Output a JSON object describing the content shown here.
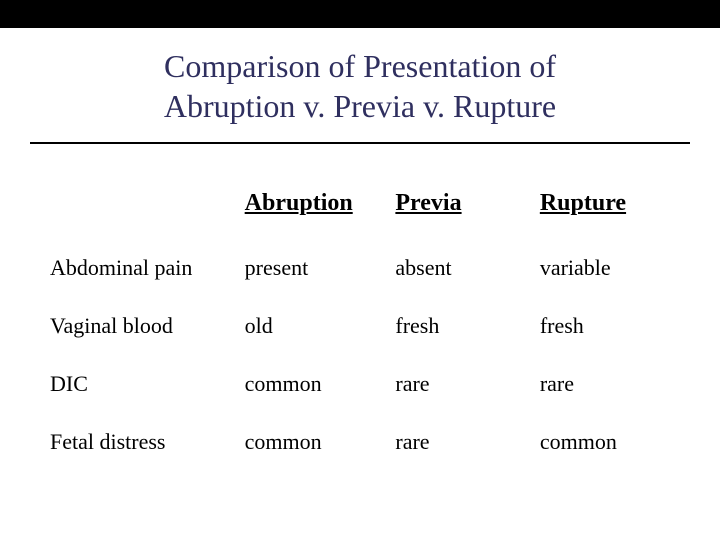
{
  "title": {
    "line1": "Comparison of Presentation of",
    "line2": "Abruption v. Previa v. Rupture"
  },
  "table": {
    "headers": [
      "",
      "Abruption",
      "Previa",
      "Rupture"
    ],
    "rows": [
      {
        "label": "Abdominal pain",
        "cells": [
          "present",
          "absent",
          " variable"
        ]
      },
      {
        "label": "Vaginal blood",
        "cells": [
          "old",
          "fresh",
          "fresh"
        ]
      },
      {
        "label": "DIC",
        "cells": [
          "common",
          "rare",
          "rare"
        ]
      },
      {
        "label": "Fetal distress",
        "cells": [
          "common",
          "rare",
          "common"
        ]
      }
    ]
  },
  "colors": {
    "title_text": "#2f2f5f",
    "body_text": "#000000",
    "top_bar": "#000000",
    "divider": "#000000",
    "background": "#ffffff"
  },
  "typography": {
    "title_fontsize": 32,
    "header_fontsize": 24,
    "cell_fontsize": 22,
    "font_family": "Times New Roman"
  }
}
